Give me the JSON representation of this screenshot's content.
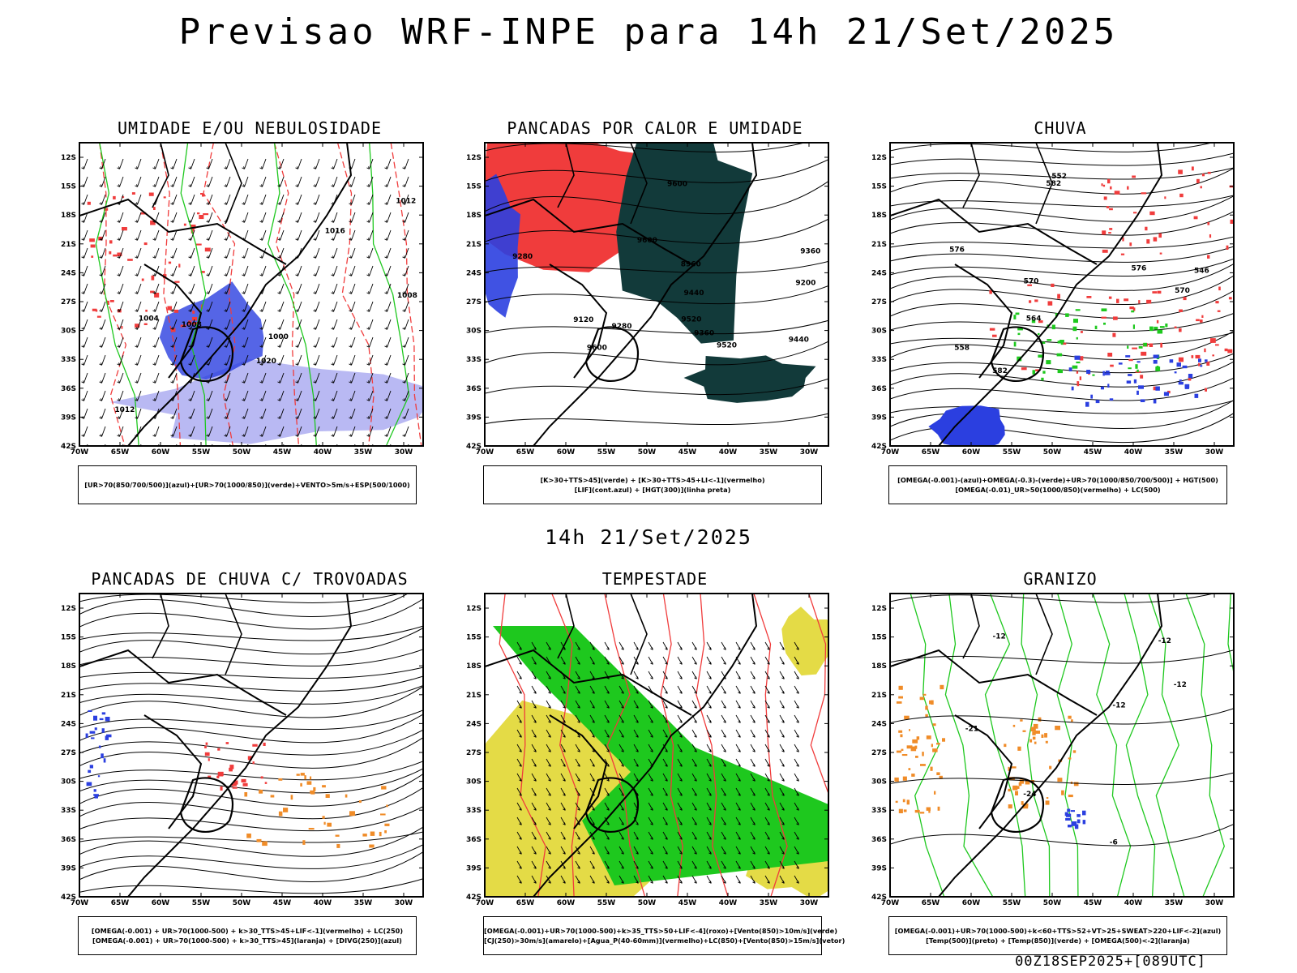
{
  "main_title": "Previsao WRF-INPE  para 14h 21/Set/2025",
  "mid_title": "14h 21/Set/2025",
  "footer": "00Z18SEP2025+[089UTC]",
  "axes": {
    "lat_labels": [
      "12S",
      "15S",
      "18S",
      "21S",
      "24S",
      "27S",
      "30S",
      "33S",
      "36S",
      "39S",
      "42S"
    ],
    "lon_labels": [
      "70W",
      "65W",
      "60W",
      "55W",
      "50W",
      "45W",
      "40W",
      "35W",
      "30W"
    ]
  },
  "colors": {
    "blue": "#2b3fe0",
    "green": "#1ec81e",
    "red": "#f03c3c",
    "darkteal": "#123a3a",
    "yellow": "#e3d93c",
    "orange": "#f08c28",
    "lightblue": "#a8a8f0"
  },
  "panels": [
    {
      "title": "UMIDADE E/OU NEBULOSIDADE",
      "legend": [
        "[UR>70(850/700/500)](azul)+[UR>70(1000/850)](verde)+VENTO>5m/s+ESP(500/1000)"
      ],
      "contour_labels": [
        "1008",
        "1016",
        "1012",
        "1020",
        "1004",
        "1000",
        "1008",
        "1012"
      ]
    },
    {
      "title": "PANCADAS POR CALOR E UMIDADE",
      "legend": [
        "[K>30+TTS>45](verde) + [K>30+TTS>45+LI<-1](vermelho)",
        "[LIF](cont.azul) + [HGT(300)](linha preta)"
      ],
      "contour_labels": [
        "9600",
        "9600",
        "9520",
        "9440",
        "9360",
        "9280",
        "9200",
        "9120",
        "8960",
        "9520",
        "9440",
        "9360",
        "9280",
        "9600"
      ]
    },
    {
      "title": "CHUVA",
      "legend": [
        "[OMEGA(-0.001)-(azul)+OMEGA(-0.3)-(verde)+UR>70(1000/850/700/500)] + HGT(500)",
        "[OMEGA(-0.01)_UR>50(1000/850)(vermelho) + LC(500)"
      ],
      "contour_labels": [
        "582",
        "576",
        "570",
        "564",
        "558",
        "552",
        "546",
        "582",
        "576",
        "570"
      ]
    },
    {
      "title": "PANCADAS DE CHUVA C/ TROVOADAS",
      "legend": [
        "[OMEGA(-0.001) + UR>70(1000-500) + k>30_TTS>45+LIF<-1](vermelho) + LC(250)",
        "[OMEGA(-0.001) + UR>70(1000-500) + k>30_TTS>45](laranja) + [DIVG(250)](azul)"
      ],
      "contour_labels": []
    },
    {
      "title": "TEMPESTADE",
      "legend": [
        "[OMEGA(-0.001)+UR>70(1000-500)+k>35_TTS>50+LIF<-4](roxo)+[Vento(850)>10m/s](verde)",
        "[CJ(250)>30m/s](amarelo)+[Agua_P(40-60mm)](vermelho)+LC(850)+[Vento(850)>15m/s](vetor)"
      ],
      "contour_labels": []
    },
    {
      "title": "GRANIZO",
      "legend": [
        "[OMEGA(-0.001)+UR>70(1000-500)+k<60+TTS>52+VT>25+SWEAT>220+LIF<-2](azul)",
        "[Temp(500)](preto) + [Temp(850)](verde) + [OMEGA(500)<-2](laranja)"
      ],
      "contour_labels": [
        "-12",
        "-21",
        "-24",
        "-12",
        "-6",
        "-12",
        "-12"
      ]
    }
  ]
}
